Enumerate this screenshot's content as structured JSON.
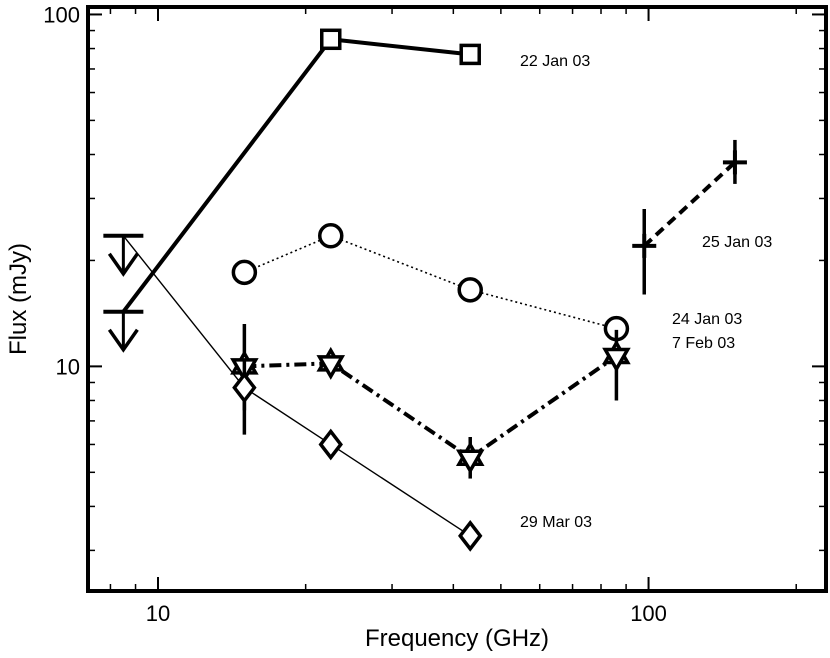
{
  "chart_data": {
    "type": "line",
    "title": "",
    "xlabel": "Frequency (GHz)",
    "ylabel": "Flux (mJy)",
    "xscale": "log",
    "yscale": "log",
    "xlim": [
      7.2,
      230
    ],
    "ylim": [
      2.3,
      105
    ],
    "x_ticks": [
      10,
      100
    ],
    "x_tick_labels": [
      "10",
      "100"
    ],
    "y_ticks": [
      10,
      100
    ],
    "y_tick_labels": [
      "10",
      "100"
    ],
    "legend": "none",
    "upper_limits": [
      {
        "name": "22 Jan 03 upper limit",
        "x": 8.5,
        "y": 14.3
      },
      {
        "name": "29 Mar 03 upper limit",
        "x": 8.5,
        "y": 23.5
      }
    ],
    "series": [
      {
        "name": "22 Jan 03",
        "marker": "square",
        "line": "solid-thick",
        "label": "22 Jan 03",
        "points": [
          {
            "x": 8.5,
            "y": 14.3
          },
          {
            "x": 22.5,
            "y": 85
          },
          {
            "x": 43.3,
            "y": 77
          }
        ]
      },
      {
        "name": "25 Jan 03",
        "marker": "plus",
        "line": "dashed-thick",
        "label": "25 Jan 03",
        "points": [
          {
            "x": 98,
            "y": 22,
            "yerr": [
              16,
              28
            ]
          },
          {
            "x": 150,
            "y": 38,
            "yerr": [
              33,
              44
            ]
          }
        ]
      },
      {
        "name": "24 Jan 03",
        "marker": "circle",
        "line": "dotted",
        "label": "24 Jan 03",
        "points": [
          {
            "x": 15,
            "y": 18.5
          },
          {
            "x": 22.5,
            "y": 23.5
          },
          {
            "x": 43.3,
            "y": 16.5
          },
          {
            "x": 86,
            "y": 12.8
          }
        ]
      },
      {
        "name": "7 Feb 03",
        "marker": "star",
        "line": "dashdot-thick",
        "label": "7 Feb 03",
        "points": [
          {
            "x": 15,
            "y": 10,
            "yerr": [
              7.5,
              13.2
            ]
          },
          {
            "x": 22.5,
            "y": 10.2,
            "yerr": [
              9.4,
              11
            ]
          },
          {
            "x": 43.3,
            "y": 5.5,
            "yerr": [
              4.8,
              6.3
            ]
          },
          {
            "x": 86,
            "y": 10.7,
            "yerr": [
              8,
              12.7
            ]
          }
        ]
      },
      {
        "name": "29 Mar 03",
        "marker": "diamond",
        "line": "solid-thin",
        "label": "29 Mar 03",
        "points": [
          {
            "x": 8.5,
            "y": 23.5
          },
          {
            "x": 15,
            "y": 8.7,
            "yerr": [
              6.4,
              10.5
            ]
          },
          {
            "x": 22.5,
            "y": 6
          },
          {
            "x": 43.3,
            "y": 3.3,
            "yerr": [
              3.05,
              3.6
            ]
          }
        ]
      }
    ]
  }
}
